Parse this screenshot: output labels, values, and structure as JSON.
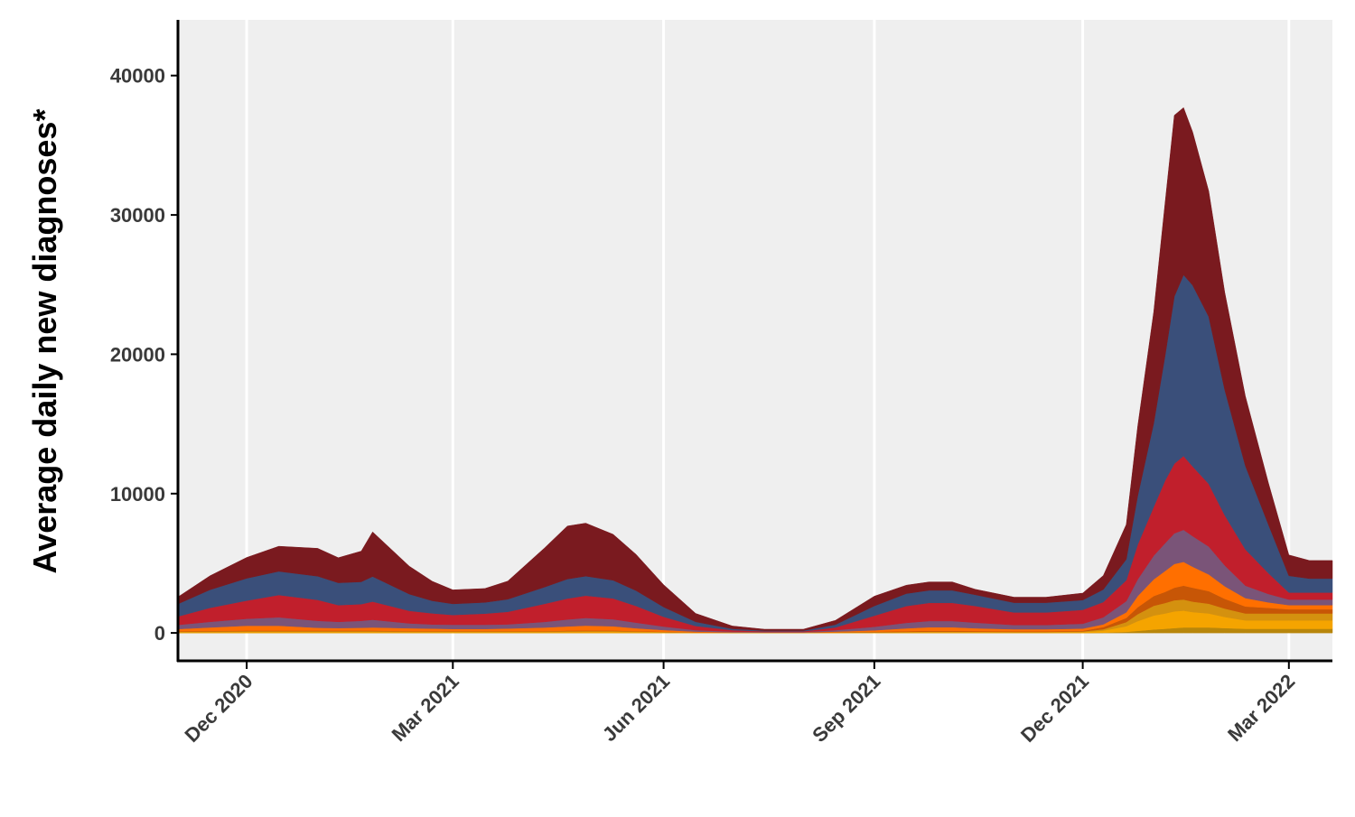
{
  "chart_data": {
    "type": "area",
    "stacked": true,
    "title": "",
    "xlabel": "",
    "ylabel": "Average daily new diagnoses*",
    "xlim": [
      "2020-11-01",
      "2022-03-20"
    ],
    "ylim": [
      -2000,
      44000
    ],
    "yticks": [
      0,
      10000,
      20000,
      30000,
      40000
    ],
    "ytick_labels": [
      "0",
      "10000",
      "20000",
      "30000",
      "40000"
    ],
    "xticks": [
      "2020-12-01",
      "2021-03-01",
      "2021-06-01",
      "2021-09-01",
      "2021-12-01",
      "2022-03-01"
    ],
    "xtick_labels": [
      "Dec 2020",
      "Mar 2021",
      "Jun 2021",
      "Sep 2021",
      "Dec 2021",
      "Mar 2022"
    ],
    "grid": {
      "vertical": true,
      "horizontal": false
    },
    "legend": "none",
    "x": [
      "2020-11-01",
      "2020-11-15",
      "2020-12-01",
      "2020-12-15",
      "2021-01-01",
      "2021-01-10",
      "2021-01-20",
      "2021-01-25",
      "2021-02-10",
      "2021-02-20",
      "2021-03-01",
      "2021-03-15",
      "2021-03-25",
      "2021-04-10",
      "2021-04-20",
      "2021-04-28",
      "2021-05-10",
      "2021-05-20",
      "2021-06-01",
      "2021-06-15",
      "2021-07-01",
      "2021-07-15",
      "2021-08-01",
      "2021-08-15",
      "2021-09-01",
      "2021-09-15",
      "2021-09-25",
      "2021-10-05",
      "2021-10-15",
      "2021-11-01",
      "2021-11-15",
      "2021-12-01",
      "2021-12-10",
      "2021-12-20",
      "2021-12-25",
      "2022-01-01",
      "2022-01-06",
      "2022-01-10",
      "2022-01-14",
      "2022-01-18",
      "2022-01-25",
      "2022-02-01",
      "2022-02-10",
      "2022-02-20",
      "2022-03-01",
      "2022-03-10",
      "2022-03-20"
    ],
    "series": [
      {
        "color": "#b8860b",
        "values": [
          0,
          0,
          0,
          0,
          0,
          0,
          0,
          0,
          0,
          0,
          0,
          0,
          0,
          0,
          0,
          0,
          0,
          0,
          0,
          0,
          0,
          0,
          0,
          0,
          0,
          0,
          0,
          0,
          0,
          0,
          0,
          0,
          20,
          80,
          150,
          250,
          300,
          350,
          400,
          400,
          400,
          350,
          300,
          300,
          300,
          300,
          300
        ]
      },
      {
        "color": "#f5a400",
        "values": [
          50,
          60,
          70,
          70,
          70,
          70,
          70,
          70,
          60,
          60,
          60,
          60,
          60,
          60,
          70,
          80,
          80,
          60,
          40,
          20,
          10,
          10,
          10,
          20,
          30,
          40,
          50,
          50,
          50,
          40,
          40,
          60,
          150,
          400,
          700,
          1000,
          1100,
          1200,
          1200,
          1100,
          1000,
          800,
          600,
          600,
          600,
          600,
          600
        ]
      },
      {
        "color": "#d4910f",
        "values": [
          50,
          50,
          60,
          60,
          60,
          60,
          60,
          60,
          50,
          50,
          50,
          50,
          50,
          50,
          60,
          60,
          60,
          50,
          30,
          20,
          10,
          10,
          10,
          20,
          30,
          40,
          50,
          50,
          40,
          40,
          40,
          50,
          100,
          300,
          500,
          700,
          750,
          800,
          800,
          750,
          700,
          600,
          500,
          500,
          500,
          500,
          500
        ]
      },
      {
        "color": "#c75606",
        "values": [
          30,
          40,
          40,
          40,
          40,
          40,
          40,
          40,
          30,
          30,
          30,
          30,
          30,
          30,
          40,
          40,
          40,
          30,
          20,
          10,
          10,
          10,
          10,
          20,
          30,
          50,
          60,
          60,
          50,
          40,
          40,
          50,
          150,
          300,
          500,
          700,
          800,
          900,
          1000,
          1000,
          900,
          700,
          500,
          400,
          300,
          300,
          300
        ]
      },
      {
        "color": "#ff6f00",
        "values": [
          150,
          250,
          350,
          350,
          200,
          180,
          200,
          230,
          200,
          170,
          150,
          150,
          180,
          250,
          300,
          350,
          300,
          200,
          120,
          50,
          20,
          10,
          10,
          40,
          100,
          200,
          250,
          250,
          200,
          150,
          150,
          150,
          200,
          400,
          800,
          1200,
          1500,
          1700,
          1700,
          1500,
          1200,
          900,
          600,
          400,
          300,
          300,
          300
        ]
      },
      {
        "color": "#7a5478",
        "values": [
          300,
          400,
          500,
          600,
          500,
          450,
          500,
          550,
          350,
          300,
          300,
          300,
          300,
          400,
          500,
          550,
          500,
          400,
          250,
          100,
          50,
          30,
          30,
          100,
          250,
          400,
          450,
          450,
          400,
          300,
          300,
          350,
          500,
          800,
          1200,
          1700,
          2000,
          2200,
          2300,
          2200,
          2000,
          1500,
          900,
          600,
          400,
          400,
          400
        ]
      },
      {
        "color": "#c11f2c",
        "values": [
          600,
          1000,
          1300,
          1600,
          1500,
          1200,
          1200,
          1300,
          900,
          800,
          700,
          800,
          900,
          1300,
          1500,
          1600,
          1500,
          1200,
          700,
          300,
          100,
          50,
          50,
          200,
          800,
          1200,
          1300,
          1300,
          1200,
          900,
          900,
          1000,
          1100,
          1500,
          2500,
          3500,
          4500,
          5000,
          5300,
          5000,
          4500,
          3600,
          2600,
          1500,
          500,
          500,
          500
        ]
      },
      {
        "color": "#3a4f7a",
        "values": [
          900,
          1300,
          1600,
          1700,
          1700,
          1600,
          1600,
          1800,
          1200,
          900,
          800,
          800,
          900,
          1200,
          1400,
          1400,
          1300,
          1100,
          700,
          300,
          100,
          50,
          50,
          200,
          700,
          900,
          900,
          900,
          800,
          700,
          700,
          700,
          900,
          1500,
          3500,
          6000,
          9000,
          12000,
          13000,
          13000,
          12000,
          9000,
          6000,
          3500,
          1200,
          1000,
          1000
        ]
      },
      {
        "color": "#7a1a1f",
        "values": [
          500,
          1000,
          1500,
          1800,
          2000,
          1800,
          2200,
          3200,
          2000,
          1400,
          1000,
          1000,
          1300,
          2800,
          3800,
          3800,
          3300,
          2600,
          1600,
          600,
          200,
          100,
          100,
          300,
          700,
          600,
          600,
          600,
          400,
          400,
          400,
          500,
          1000,
          2500,
          5000,
          8000,
          11000,
          13000,
          12000,
          11000,
          9000,
          7000,
          5000,
          3000,
          1500,
          1300,
          1300
        ]
      }
    ]
  }
}
